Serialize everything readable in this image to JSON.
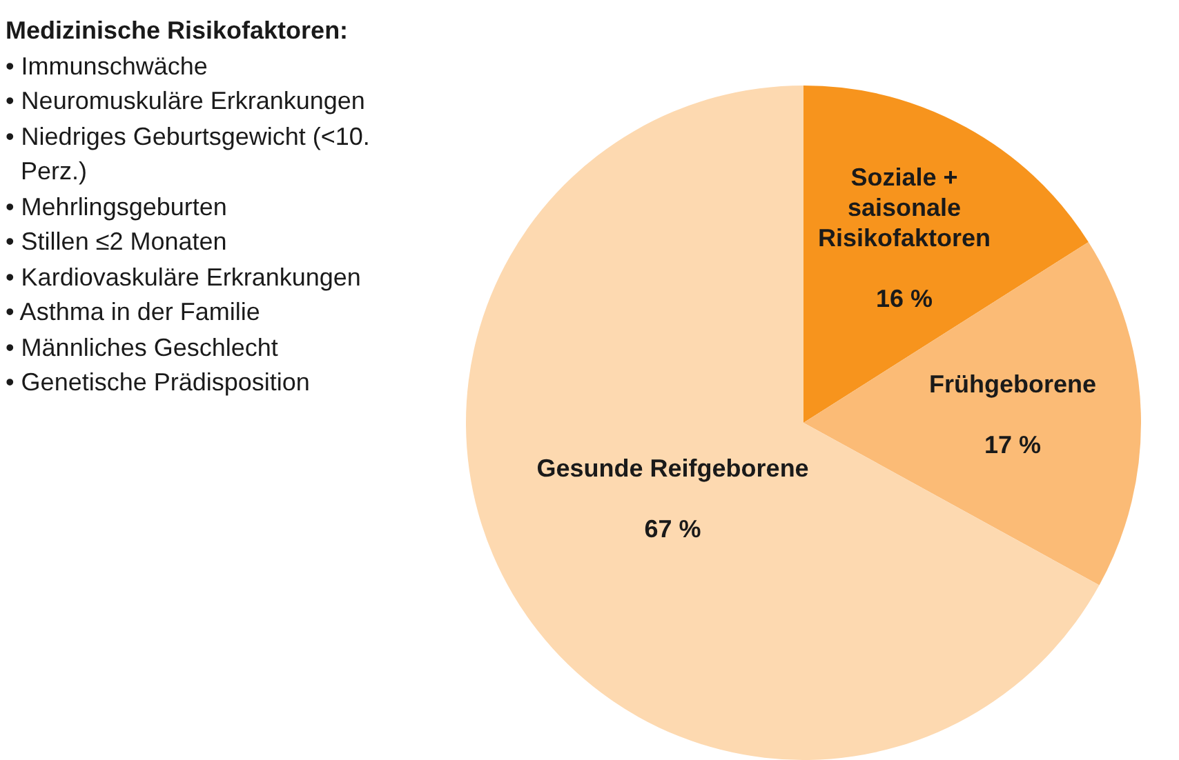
{
  "chart_data": {
    "type": "pie",
    "title": "Medizinische Risikofaktoren:",
    "annotations": [
      "• Immunschwäche",
      "• Neuromuskuläre Erkrankungen",
      "• Niedriges Geburtsgewicht (<10. Perz.)",
      "• Mehrlingsgeburten",
      "• Stillen ≤2 Monaten",
      "• Kardiovaskuläre Erkrankungen",
      "• Asthma in der Familie",
      "• Männliches Geschlecht",
      "• Genetische Prädisposition"
    ],
    "categories": [
      "Soziale + saisonale Risikofaktoren",
      "Frühgeborene",
      "Gesunde Reifgeborene"
    ],
    "values": [
      16,
      17,
      67
    ],
    "value_labels": [
      "16 %",
      "17 %",
      "67 %"
    ],
    "colors": [
      "#f7941d",
      "#fbbb76",
      "#fdd9b0"
    ],
    "legend": false
  }
}
